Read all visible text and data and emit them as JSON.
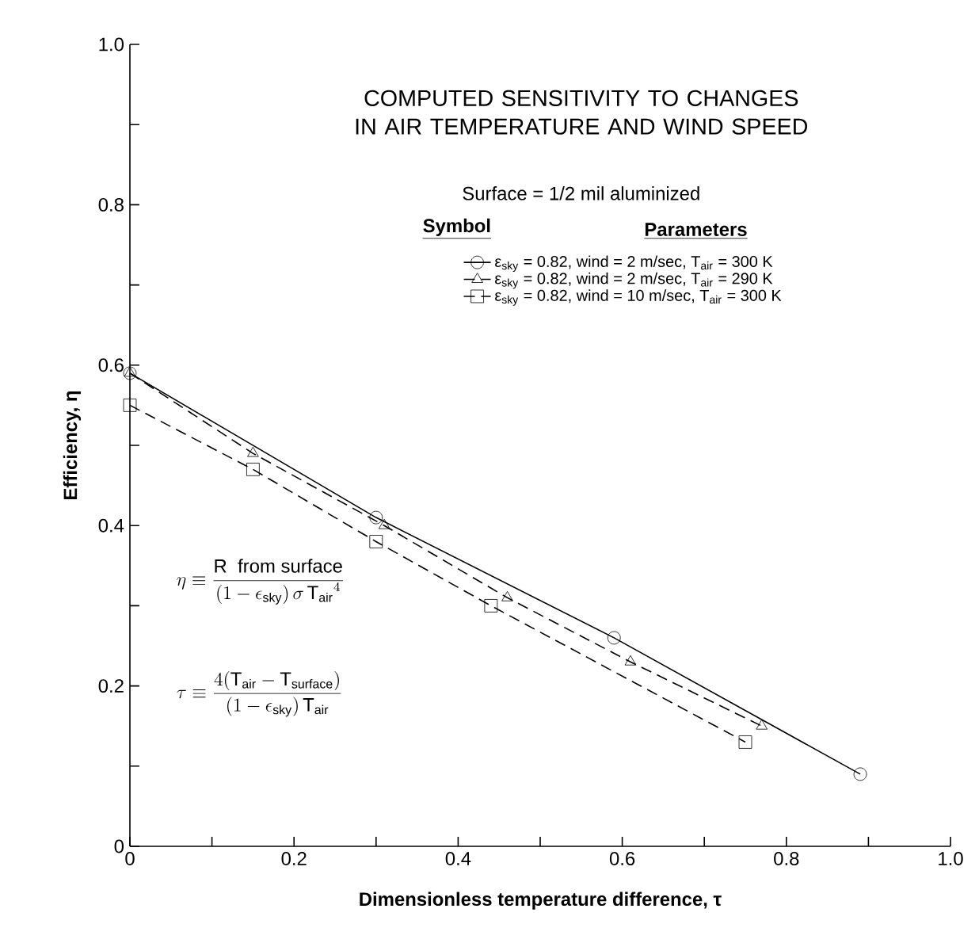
{
  "chart_data": {
    "type": "line",
    "title": "COMPUTED SENSITIVITY TO CHANGES IN AIR TEMPERATURE AND WIND SPEED",
    "subtitle": "Surface = 1/2 mil aluminized",
    "xlabel": "Dimensionless temperature difference, τ",
    "ylabel": "Efficiency, η",
    "xlim": [
      0,
      1
    ],
    "ylim": [
      0,
      1
    ],
    "xticks": [
      0,
      {
        "value": 0.1,
        "label": null
      },
      0.2,
      {
        "value": 0.3,
        "label": null
      },
      0.4,
      {
        "value": 0.5,
        "label": null
      },
      0.6,
      {
        "value": 0.7,
        "label": null
      },
      0.8,
      {
        "value": 0.9,
        "label": null
      },
      {
        "value": 1,
        "label": "1.0"
      }
    ],
    "yticks": [
      0,
      {
        "value": 0.1,
        "label": null
      },
      0.2,
      {
        "value": 0.3,
        "label": null
      },
      0.4,
      {
        "value": 0.5,
        "label": null
      },
      0.6,
      {
        "value": 0.7,
        "label": null
      },
      0.8,
      {
        "value": 0.9,
        "label": null
      },
      {
        "value": 1,
        "label": "1.0"
      }
    ],
    "legend": "top right",
    "legend_title": "Symbol",
    "series": [
      {
        "name": "ε$_{sky}$ = 0.82, wind = 2 m/sec, T$_{air}$ = 300 K",
        "color": "#000000",
        "marker": "circle",
        "line_style": "solid",
        "x": [
          0,
          0.3,
          0.59,
          0.89
        ],
        "values": [
          0.59,
          0.41,
          0.26,
          0.09
        ]
      },
      {
        "name": "ε$_{sky}$ = 0.82, wind = 2 m/sec, T$_{air}$ = 290 K",
        "color": "#000000",
        "marker": "triangle",
        "line_style": "dashed",
        "x": [
          0,
          0.15,
          0.31,
          0.46,
          0.61,
          0.77
        ],
        "values": [
          0.59,
          0.49,
          0.4,
          0.31,
          0.23,
          0.15
        ]
      },
      {
        "name": "ε$_{sky}$ = 0.82, wind = 10 m/sec, T$_{air}$ = 300 K",
        "color": "#000000",
        "marker": "square",
        "line_style": "dashed",
        "x": [
          0,
          0.15,
          0.3,
          0.44,
          0.75
        ],
        "values": [
          0.55,
          0.47,
          0.38,
          0.3,
          0.13
        ]
      }
    ],
    "annotations": [
      "Parameters",
      "\\eta \\equiv \\frac{\\mathrm{R\\ \\ from\\ surface}}{(1-\\epsilon_{\\mathrm{sky}})\\,\\sigma\\,\\mathrm{T_{air}}^{4}}",
      "\\tau \\equiv \\frac{4(\\mathrm{T_{air}}-\\mathrm{T_{surface}})}{(1-\\epsilon_{\\mathrm{sky}})\\,\\mathrm{T_{air}}}"
    ]
  }
}
